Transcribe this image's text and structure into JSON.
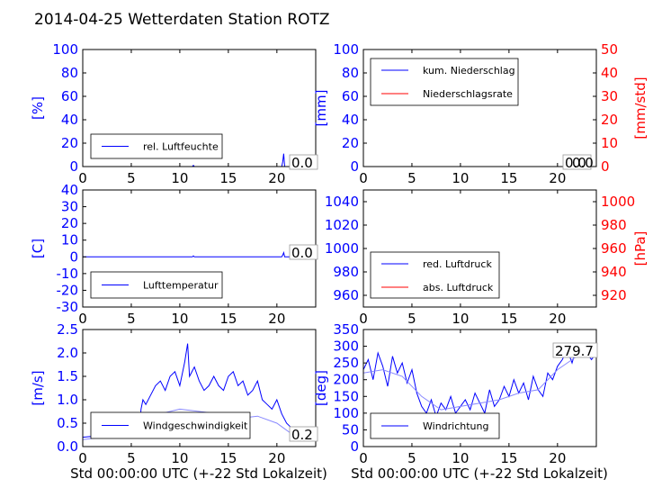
{
  "title": "2014-04-25 Wetterdaten Station ROTZ",
  "xlabel": "Std 00:00:00 UTC (+-22 Std Lokalzeit)",
  "colors": {
    "blue": "#0000ff",
    "red": "#ff0000",
    "lightblue": "#8888ff"
  },
  "chart_data": [
    {
      "id": "humidity",
      "type": "line",
      "xlim": [
        0,
        24
      ],
      "xticks": [
        0,
        5,
        10,
        15,
        20
      ],
      "ylim": [
        0,
        100
      ],
      "yticks": [
        0,
        20,
        40,
        60,
        80,
        100
      ],
      "ylabel": "[%]",
      "legend": {
        "placement": "lower-left",
        "entries": [
          "rel. Luftfeuchte"
        ]
      },
      "annotation": "0.0",
      "series": [
        {
          "name": "rel. Luftfeuchte",
          "color": "blue",
          "x": [
            0,
            11.3,
            11.4,
            11.5,
            20.5,
            20.6,
            20.7,
            20.8,
            24
          ],
          "y": [
            0,
            0,
            1.0,
            0,
            0,
            4.0,
            11.0,
            0,
            0
          ]
        }
      ]
    },
    {
      "id": "precip",
      "type": "line",
      "xlim": [
        0,
        24
      ],
      "xticks": [
        0,
        5,
        10,
        15,
        20
      ],
      "ylim": [
        0,
        100
      ],
      "yticks": [
        0,
        20,
        40,
        60,
        80,
        100
      ],
      "ylabel": "[mm]",
      "ylim_right": [
        0,
        50
      ],
      "yticks_right": [
        0,
        10,
        20,
        30,
        40,
        50
      ],
      "ylabel_right": "[mm/std]",
      "legend": {
        "placement": "upper-left",
        "entries": [
          "kum. Niederschlag",
          "Niederschlagsrate"
        ]
      },
      "annotation": "0.0",
      "annotation_overlap": "0.0",
      "series": [
        {
          "name": "kum. Niederschlag",
          "color": "blue",
          "x": [
            0,
            24
          ],
          "y": [
            0,
            0
          ]
        },
        {
          "name": "Niederschlagsrate",
          "color": "red",
          "x": [
            0,
            24
          ],
          "y": [
            0,
            0
          ]
        }
      ]
    },
    {
      "id": "temperature",
      "type": "line",
      "xlim": [
        0,
        24
      ],
      "xticks": [
        0,
        5,
        10,
        15,
        20
      ],
      "ylim": [
        -30,
        40
      ],
      "yticks": [
        -30,
        -20,
        -10,
        0,
        10,
        20,
        30,
        40
      ],
      "ylabel": "[C]",
      "legend": {
        "placement": "lower-left",
        "entries": [
          "Lufttemperatur"
        ]
      },
      "annotation": "0.0",
      "series": [
        {
          "name": "Lufttemperatur",
          "color": "blue",
          "x": [
            0,
            11.3,
            11.4,
            11.5,
            20.5,
            20.6,
            20.7,
            20.8,
            24
          ],
          "y": [
            0,
            0,
            0.6,
            0,
            0,
            1.0,
            2.5,
            0,
            0
          ]
        }
      ]
    },
    {
      "id": "pressure",
      "type": "line",
      "xlim": [
        0,
        24
      ],
      "xticks": [
        0,
        5,
        10,
        15,
        20
      ],
      "ylim": [
        950,
        1050
      ],
      "yticks": [
        960,
        980,
        1000,
        1020,
        1040
      ],
      "ylabel": "",
      "ylim_right": [
        910,
        1010
      ],
      "yticks_right": [
        920,
        940,
        960,
        980,
        1000
      ],
      "ylabel_right": "[hPa]",
      "legend": {
        "placement": "lower-left",
        "entries": [
          "red. Luftdruck",
          "abs. Luftdruck"
        ]
      },
      "series": [
        {
          "name": "red. Luftdruck",
          "color": "blue",
          "x": [],
          "y": []
        },
        {
          "name": "abs. Luftdruck",
          "color": "red",
          "x": [],
          "y": []
        }
      ]
    },
    {
      "id": "wind",
      "type": "line",
      "xlim": [
        0,
        24
      ],
      "xticks": [
        0,
        5,
        10,
        15,
        20
      ],
      "ylim": [
        0,
        2.5
      ],
      "yticks": [
        0.0,
        0.5,
        1.0,
        1.5,
        2.0,
        2.5
      ],
      "ylabel": "[m/s]",
      "legend": {
        "placement": "lower-left",
        "entries": [
          "Windgeschwindigkeit"
        ]
      },
      "annotation": "0.2",
      "series": [
        {
          "name": "Windgeschwindigkeit",
          "color": "blue",
          "x": [
            0,
            1,
            2,
            3,
            4,
            5,
            5.8,
            6,
            6.2,
            6.5,
            7,
            7.5,
            8,
            8.5,
            9,
            9.5,
            10,
            10.5,
            10.8,
            11,
            11.5,
            12,
            12.5,
            13,
            13.5,
            14,
            14.5,
            15,
            15.5,
            16,
            16.5,
            17,
            17.5,
            18,
            18.5,
            19,
            19.5,
            20,
            20.5,
            21,
            21.5,
            22,
            22.5,
            23,
            24
          ],
          "y": [
            0.2,
            0.22,
            0.25,
            0.2,
            0.22,
            0.25,
            0.2,
            0.8,
            1.0,
            0.9,
            1.1,
            1.3,
            1.4,
            1.2,
            1.5,
            1.6,
            1.3,
            1.8,
            2.2,
            1.5,
            1.7,
            1.4,
            1.2,
            1.3,
            1.5,
            1.3,
            1.2,
            1.5,
            1.6,
            1.3,
            1.4,
            1.1,
            1.2,
            1.4,
            1.0,
            0.9,
            0.8,
            1.0,
            0.7,
            0.5,
            0.4,
            0.3,
            0.25,
            0.2,
            0.2
          ]
        },
        {
          "name": "",
          "color": "lightblue",
          "x": [
            0,
            2,
            4,
            6,
            8,
            10,
            12,
            14,
            16,
            18,
            20,
            22,
            24
          ],
          "y": [
            0.15,
            0.2,
            0.3,
            0.2,
            0.7,
            0.8,
            0.75,
            0.7,
            0.6,
            0.65,
            0.5,
            0.2,
            0.15
          ]
        }
      ]
    },
    {
      "id": "direction",
      "type": "line",
      "xlim": [
        0,
        24
      ],
      "xticks": [
        0,
        5,
        10,
        15,
        20
      ],
      "ylim": [
        0,
        350
      ],
      "yticks": [
        0,
        50,
        100,
        150,
        200,
        250,
        300,
        350
      ],
      "ylabel": "[deg]",
      "legend": {
        "placement": "lower-left",
        "entries": [
          "Windrichtung"
        ]
      },
      "annotation": "279.7",
      "series": [
        {
          "name": "Windrichtung",
          "color": "blue",
          "x": [
            0,
            0.5,
            1,
            1.5,
            2,
            2.5,
            3,
            3.5,
            4,
            4.5,
            5,
            5.5,
            6,
            6.5,
            7,
            7.5,
            8,
            8.5,
            9,
            9.5,
            10,
            10.5,
            11,
            11.5,
            12,
            12.5,
            13,
            13.5,
            14,
            14.5,
            15,
            15.5,
            16,
            16.5,
            17,
            17.5,
            18,
            18.5,
            19,
            19.5,
            20,
            20.5,
            21,
            21.5,
            22,
            22.5,
            23,
            23.5,
            24
          ],
          "y": [
            230,
            260,
            200,
            280,
            240,
            180,
            270,
            220,
            250,
            190,
            230,
            160,
            120,
            100,
            140,
            90,
            130,
            110,
            150,
            100,
            120,
            140,
            110,
            160,
            130,
            100,
            170,
            120,
            140,
            180,
            150,
            200,
            160,
            190,
            140,
            210,
            170,
            150,
            220,
            200,
            240,
            260,
            290,
            250,
            300,
            270,
            280,
            260,
            280
          ]
        },
        {
          "name": "",
          "color": "lightblue",
          "x": [
            0,
            2,
            4,
            6,
            8,
            10,
            12,
            14,
            16,
            18,
            20,
            22,
            24
          ],
          "y": [
            220,
            230,
            210,
            150,
            110,
            120,
            130,
            140,
            160,
            170,
            230,
            270,
            275
          ]
        }
      ]
    }
  ]
}
